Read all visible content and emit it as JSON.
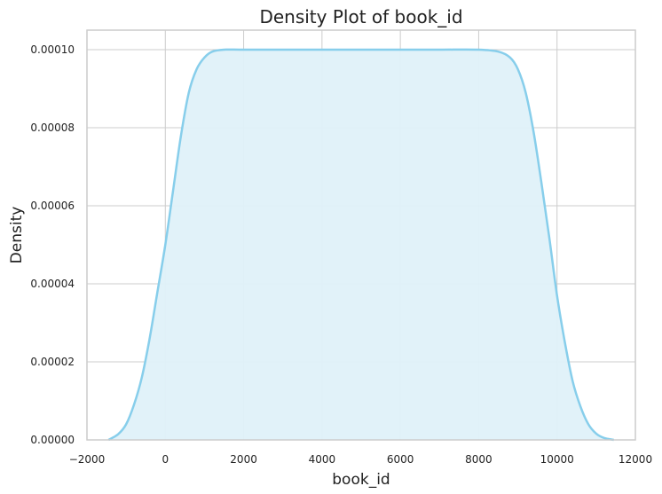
{
  "chart_data": {
    "type": "area",
    "title": "Density Plot of book_id",
    "xlabel": "book_id",
    "ylabel": "Density",
    "xlim": [
      -2000,
      12000
    ],
    "ylim": [
      0,
      0.000105
    ],
    "xticks": [
      -2000,
      0,
      2000,
      4000,
      6000,
      8000,
      10000,
      12000
    ],
    "xtick_labels": [
      "−2000",
      "0",
      "2000",
      "4000",
      "6000",
      "8000",
      "10000",
      "12000"
    ],
    "yticks": [
      0,
      2e-05,
      4e-05,
      6e-05,
      8e-05,
      0.0001
    ],
    "ytick_labels": [
      "0.00000",
      "0.00002",
      "0.00004",
      "0.00006",
      "0.00008",
      "0.00010"
    ],
    "grid": true,
    "series": [
      {
        "x": [
          -1450,
          -1200,
          -1000,
          -800,
          -600,
          -400,
          -200,
          0,
          200,
          400,
          600,
          800,
          1000,
          1200,
          1500,
          2000,
          3000,
          4000,
          5000,
          6000,
          7000,
          8000,
          8500,
          8800,
          9000,
          9200,
          9400,
          9600,
          9800,
          10000,
          10200,
          10400,
          10600,
          10800,
          11000,
          11200,
          11450
        ],
        "y": [
          0,
          1.5e-06,
          4e-06,
          9e-06,
          1.6e-05,
          2.6e-05,
          3.8e-05,
          5e-05,
          6.4e-05,
          7.8e-05,
          8.9e-05,
          9.5e-05,
          9.8e-05,
          9.95e-05,
          0.0001,
          0.0001,
          0.0001,
          0.0001,
          0.0001,
          0.0001,
          0.0001,
          0.0001,
          9.95e-05,
          9.8e-05,
          9.5e-05,
          8.9e-05,
          7.9e-05,
          6.6e-05,
          5.2e-05,
          3.7e-05,
          2.5e-05,
          1.5e-05,
          8.5e-06,
          4e-06,
          1.6e-06,
          5e-07,
          0
        ]
      }
    ],
    "line_color": "#87ceeb",
    "fill_color": "#dff1f9",
    "grid_color": "#cccccc",
    "spine_color": "#cccccc"
  }
}
